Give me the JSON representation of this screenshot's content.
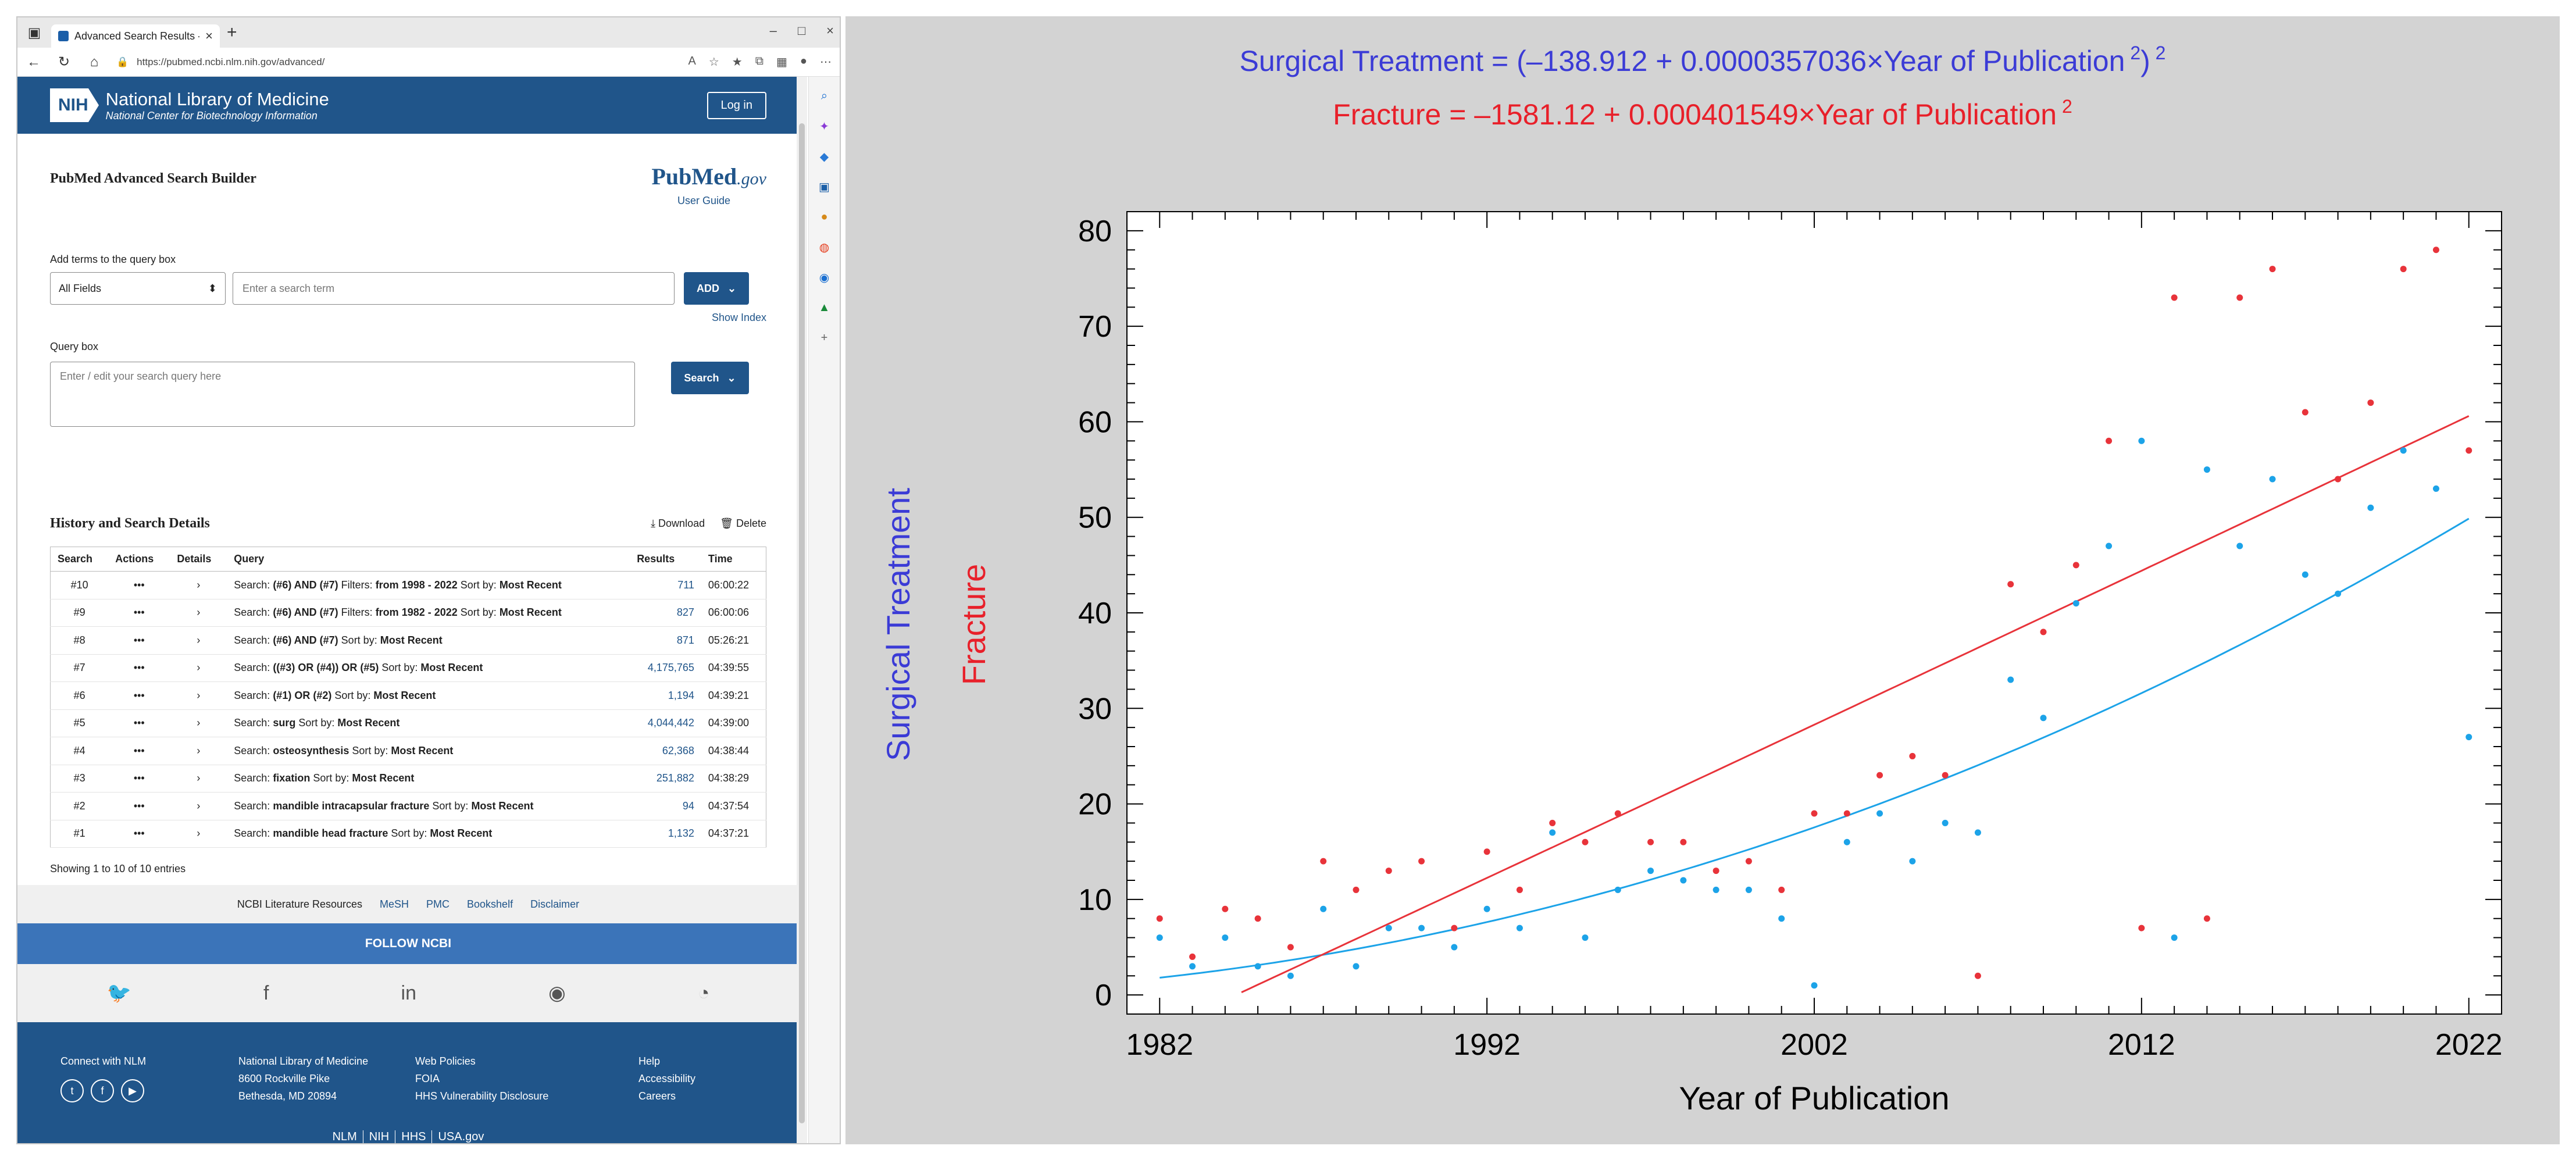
{
  "browser": {
    "tab_title": "Advanced Search Results - PubMed",
    "url": "https://pubmed.ncbi.nlm.nih.gov/advanced/"
  },
  "header": {
    "logo": "NIH",
    "org_name": "National Library of Medicine",
    "org_sub": "National Center for Biotechnology Information",
    "login": "Log in"
  },
  "builder": {
    "title": "PubMed Advanced Search Builder",
    "brand": "PubMed",
    "brand_suffix": ".gov",
    "user_guide": "User Guide",
    "add_terms_label": "Add terms to the query box",
    "field_select": "All Fields",
    "term_placeholder": "Enter a search term",
    "add_button": "ADD",
    "show_index": "Show Index",
    "query_label": "Query box",
    "query_placeholder": "Enter / edit your search query here",
    "search_button": "Search"
  },
  "history": {
    "title": "History and Search Details",
    "download": "Download",
    "delete": "Delete",
    "columns": [
      "Search",
      "Actions",
      "Details",
      "Query",
      "Results",
      "Time"
    ],
    "rows": [
      {
        "id": "#10",
        "prefix": "Search: ",
        "query": "(#6) AND (#7)",
        "mid": " Filters: ",
        "filter": "from 1998 - 2022",
        "sortlbl": " Sort by: ",
        "sort": "Most Recent",
        "results": "711",
        "time": "06:00:22"
      },
      {
        "id": "#9",
        "prefix": "Search: ",
        "query": "(#6) AND (#7)",
        "mid": " Filters: ",
        "filter": "from 1982 - 2022",
        "sortlbl": " Sort by: ",
        "sort": "Most Recent",
        "results": "827",
        "time": "06:00:06"
      },
      {
        "id": "#8",
        "prefix": "Search: ",
        "query": "(#6) AND (#7)",
        "mid": "",
        "filter": "",
        "sortlbl": " Sort by: ",
        "sort": "Most Recent",
        "results": "871",
        "time": "05:26:21"
      },
      {
        "id": "#7",
        "prefix": "Search: ",
        "query": "((#3) OR (#4)) OR (#5)",
        "mid": "",
        "filter": "",
        "sortlbl": " Sort by: ",
        "sort": "Most Recent",
        "results": "4,175,765",
        "time": "04:39:55"
      },
      {
        "id": "#6",
        "prefix": "Search: ",
        "query": "(#1) OR (#2)",
        "mid": "",
        "filter": "",
        "sortlbl": " Sort by: ",
        "sort": "Most Recent",
        "results": "1,194",
        "time": "04:39:21"
      },
      {
        "id": "#5",
        "prefix": "Search: ",
        "query": "surg",
        "mid": "",
        "filter": "",
        "sortlbl": " Sort by: ",
        "sort": "Most Recent",
        "results": "4,044,442",
        "time": "04:39:00"
      },
      {
        "id": "#4",
        "prefix": "Search: ",
        "query": "osteosynthesis",
        "mid": "",
        "filter": "",
        "sortlbl": " Sort by: ",
        "sort": "Most Recent",
        "results": "62,368",
        "time": "04:38:44"
      },
      {
        "id": "#3",
        "prefix": "Search: ",
        "query": "fixation",
        "mid": "",
        "filter": "",
        "sortlbl": " Sort by: ",
        "sort": "Most Recent",
        "results": "251,882",
        "time": "04:38:29"
      },
      {
        "id": "#2",
        "prefix": "Search: ",
        "query": "mandible intracapsular fracture",
        "mid": "",
        "filter": "",
        "sortlbl": " Sort by: ",
        "sort": "Most Recent",
        "results": "94",
        "time": "04:37:54"
      },
      {
        "id": "#1",
        "prefix": "Search: ",
        "query": "mandible head fracture",
        "mid": "",
        "filter": "",
        "sortlbl": " Sort by: ",
        "sort": "Most Recent",
        "results": "1,132",
        "time": "04:37:21"
      }
    ],
    "showing": "Showing 1 to 10 of 10 entries"
  },
  "footer": {
    "resources_label": "NCBI Literature Resources",
    "resources": [
      "MeSH",
      "PMC",
      "Bookshelf",
      "Disclaimer"
    ],
    "follow": "FOLLOW NCBI",
    "connect": "Connect with NLM",
    "address": [
      "National Library of Medicine",
      "8600 Rockville Pike",
      "Bethesda, MD 20894"
    ],
    "policies": [
      "Web Policies",
      "FOIA",
      "HHS Vulnerability Disclosure"
    ],
    "help": [
      "Help",
      "Accessibility",
      "Careers"
    ],
    "bottom": [
      "NLM",
      "NIH",
      "HHS",
      "USA.gov"
    ]
  },
  "colors": {
    "surgical": "#1ca3e8",
    "fracture": "#e8333a",
    "blue_text": "#3b3bd6",
    "red_text": "#e8202a"
  },
  "chart_data": {
    "type": "scatter",
    "equation_surgical": "Surgical Treatment = (–138.912 + 0.0000357036×Year of Publication 2) 2",
    "equation_fracture": "Fracture = –1581.12 + 0.000401549×Year of Publication 2",
    "xlabel": "Year of Publication",
    "ylabel_1": "Surgical Treatment",
    "ylabel_2": "Fracture",
    "xlim": [
      1981,
      2023
    ],
    "ylim": [
      -2,
      82
    ],
    "x_ticks": [
      1982,
      1992,
      2002,
      2012,
      2022
    ],
    "y_ticks": [
      0,
      10,
      20,
      30,
      40,
      50,
      60,
      70,
      80
    ],
    "series": [
      {
        "name": "Surgical Treatment",
        "color": "#1ca3e8",
        "x": [
          1982,
          1983,
          1984,
          1985,
          1986,
          1987,
          1988,
          1989,
          1990,
          1991,
          1992,
          1993,
          1994,
          1995,
          1996,
          1997,
          1998,
          1999,
          2000,
          2001,
          2002,
          2003,
          2004,
          2005,
          2006,
          2007,
          2008,
          2009,
          2010,
          2011,
          2012,
          2013,
          2014,
          2015,
          2016,
          2017,
          2018,
          2019,
          2020,
          2021,
          2022
        ],
        "y": [
          6,
          3,
          6,
          3,
          2,
          9,
          3,
          7,
          7,
          5,
          9,
          7,
          17,
          6,
          11,
          13,
          12,
          11,
          11,
          8,
          1,
          16,
          19,
          14,
          18,
          17,
          33,
          29,
          41,
          47,
          58,
          6,
          55,
          47,
          54,
          44,
          42,
          51,
          57,
          53,
          27
        ]
      },
      {
        "name": "Fracture",
        "color": "#e8333a",
        "x": [
          1982,
          1983,
          1984,
          1985,
          1986,
          1987,
          1988,
          1989,
          1990,
          1991,
          1992,
          1993,
          1994,
          1995,
          1996,
          1997,
          1998,
          1999,
          2000,
          2001,
          2002,
          2003,
          2004,
          2005,
          2006,
          2007,
          2008,
          2009,
          2010,
          2011,
          2012,
          2013,
          2014,
          2015,
          2016,
          2017,
          2018,
          2019,
          2020,
          2021,
          2022
        ],
        "y": [
          8,
          4,
          9,
          8,
          5,
          14,
          11,
          13,
          14,
          7,
          15,
          11,
          18,
          16,
          19,
          16,
          16,
          13,
          14,
          11,
          19,
          19,
          23,
          25,
          23,
          2,
          43,
          38,
          45,
          58,
          7,
          73,
          8,
          73,
          76,
          61,
          54,
          62,
          76,
          78,
          57
        ]
      }
    ],
    "fit_lines": [
      {
        "name": "Surgical Treatment",
        "color": "#1ca3e8",
        "a": -138.912,
        "b": 3.57036e-05,
        "form": "sq"
      },
      {
        "name": "Fracture",
        "color": "#e8333a",
        "a": -1581.12,
        "b": 0.000401549,
        "form": "lin"
      }
    ]
  }
}
